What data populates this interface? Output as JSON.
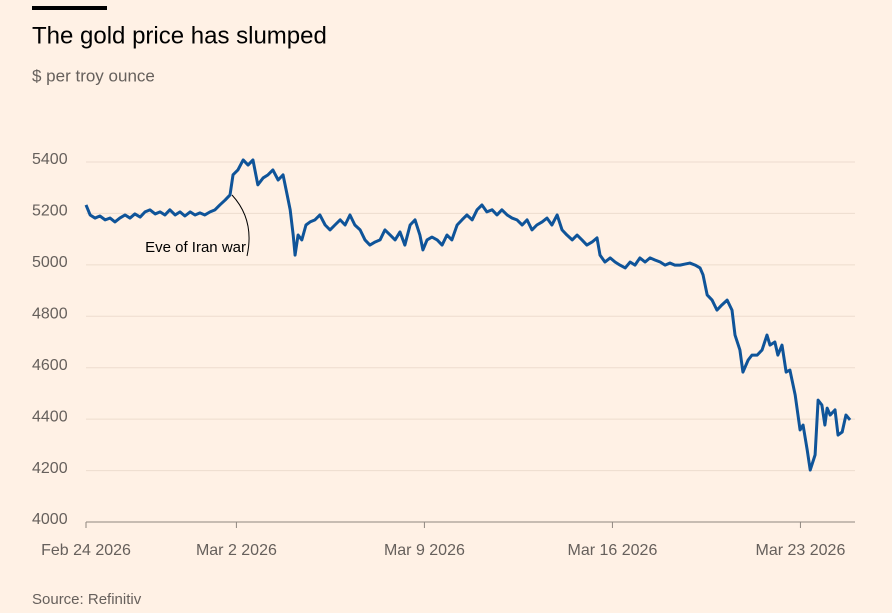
{
  "chart_data": {
    "type": "line",
    "title": "The gold price has slumped",
    "subtitle": "$ per troy ounce",
    "source": "Source: Refinitiv",
    "annotations": [
      "Eve of Iran war"
    ],
    "ylim": [
      4000,
      5400
    ],
    "yticks": [
      4000,
      4200,
      4400,
      4600,
      4800,
      5000,
      5200,
      5400
    ],
    "xlim": [
      0,
      20.35
    ],
    "xticks": [
      {
        "value": 0,
        "label": "Feb 24 2026"
      },
      {
        "value": 4,
        "label": "Mar 2 2026"
      },
      {
        "value": 9,
        "label": "Mar 9 2026"
      },
      {
        "value": 14,
        "label": "Mar 16 2026"
      },
      {
        "value": 19,
        "label": "Mar 23 2026"
      }
    ],
    "grid": true,
    "x": [
      0,
      0.11,
      0.24,
      0.37,
      0.51,
      0.64,
      0.77,
      0.9,
      1.04,
      1.17,
      1.3,
      1.44,
      1.57,
      1.7,
      1.84,
      1.97,
      2.1,
      2.23,
      2.37,
      2.5,
      2.63,
      2.77,
      2.9,
      3.03,
      3.16,
      3.3,
      3.43,
      3.56,
      3.7,
      3.83,
      3.91,
      4.04,
      4.18,
      4.31,
      4.44,
      4.57,
      4.71,
      4.84,
      4.97,
      5.11,
      5.24,
      5.35,
      5.43,
      5.51,
      5.56,
      5.64,
      5.74,
      5.85,
      5.96,
      6.09,
      6.22,
      6.36,
      6.49,
      6.62,
      6.76,
      6.89,
      7.02,
      7.15,
      7.29,
      7.42,
      7.55,
      7.69,
      7.82,
      7.95,
      8.09,
      8.22,
      8.35,
      8.48,
      8.62,
      8.75,
      8.88,
      8.96,
      9.07,
      9.2,
      9.34,
      9.47,
      9.6,
      9.73,
      9.87,
      10,
      10.13,
      10.27,
      10.4,
      10.53,
      10.66,
      10.8,
      10.93,
      11.06,
      11.2,
      11.33,
      11.46,
      11.6,
      11.73,
      11.86,
      11.99,
      12.13,
      12.26,
      12.39,
      12.53,
      12.66,
      12.79,
      12.93,
      13.06,
      13.19,
      13.32,
      13.46,
      13.59,
      13.67,
      13.8,
      13.94,
      14.07,
      14.2,
      14.34,
      14.47,
      14.6,
      14.73,
      14.87,
      15,
      15.13,
      15.27,
      15.4,
      15.53,
      15.66,
      15.8,
      15.93,
      16.06,
      16.2,
      16.33,
      16.41,
      16.52,
      16.65,
      16.78,
      16.91,
      17.05,
      17.18,
      17.26,
      17.39,
      17.47,
      17.61,
      17.71,
      17.85,
      17.98,
      18.11,
      18.19,
      18.32,
      18.4,
      18.51,
      18.62,
      18.72,
      18.86,
      18.99,
      19.07,
      19.18,
      19.26,
      19.39,
      19.47,
      19.57,
      19.65,
      19.71,
      19.79,
      19.92,
      20,
      20.11,
      20.21,
      20.32
    ],
    "series": [
      {
        "name": "Gold price",
        "color": "#0f5499",
        "values": [
          5233,
          5194,
          5182,
          5190,
          5175,
          5182,
          5167,
          5182,
          5194,
          5182,
          5198,
          5186,
          5206,
          5214,
          5198,
          5206,
          5194,
          5214,
          5194,
          5206,
          5190,
          5206,
          5194,
          5202,
          5194,
          5206,
          5214,
          5233,
          5252,
          5272,
          5350,
          5369,
          5408,
          5388,
          5408,
          5311,
          5338,
          5350,
          5369,
          5330,
          5350,
          5272,
          5214,
          5116,
          5038,
          5116,
          5097,
          5155,
          5167,
          5175,
          5194,
          5155,
          5136,
          5155,
          5175,
          5155,
          5194,
          5155,
          5136,
          5097,
          5077,
          5089,
          5097,
          5136,
          5116,
          5097,
          5128,
          5077,
          5155,
          5175,
          5116,
          5058,
          5097,
          5108,
          5097,
          5077,
          5116,
          5097,
          5155,
          5175,
          5194,
          5175,
          5214,
          5233,
          5206,
          5214,
          5194,
          5214,
          5194,
          5182,
          5175,
          5155,
          5175,
          5136,
          5155,
          5167,
          5182,
          5155,
          5194,
          5136,
          5116,
          5097,
          5116,
          5097,
          5077,
          5089,
          5105,
          5038,
          5011,
          5027,
          5011,
          4999,
          4988,
          5011,
          4999,
          5027,
          5011,
          5027,
          5019,
          5011,
          4999,
          5007,
          4999,
          4999,
          5003,
          5007,
          4999,
          4988,
          4961,
          4883,
          4863,
          4824,
          4844,
          4863,
          4824,
          4727,
          4669,
          4583,
          4630,
          4649,
          4649,
          4669,
          4727,
          4688,
          4700,
          4649,
          4688,
          4583,
          4591,
          4494,
          4358,
          4377,
          4280,
          4202,
          4261,
          4474,
          4455,
          4377,
          4443,
          4416,
          4436,
          4338,
          4350,
          4416,
          4397
        ]
      }
    ]
  }
}
